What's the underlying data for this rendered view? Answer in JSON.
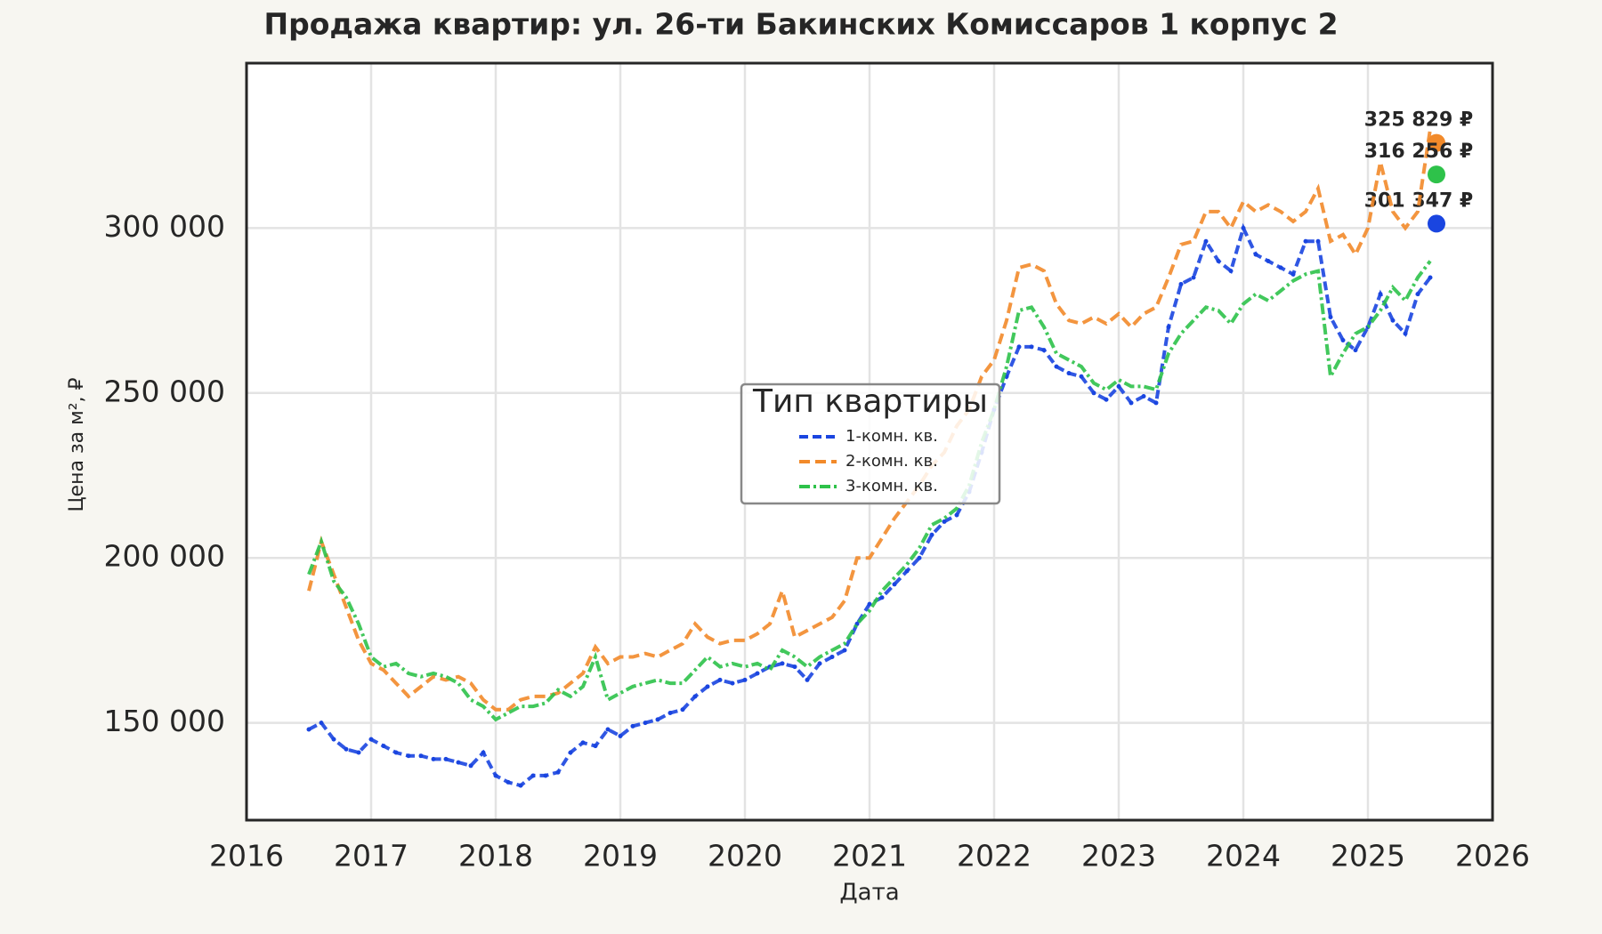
{
  "chart_data": {
    "type": "line",
    "title": "Продажа квартир: ул. 26-ти Бакинских Комиссаров 1 корпус 2",
    "x_label": "Дата",
    "y_label": "Цена за м², ₽",
    "legend_title": "Тип квартиры",
    "legend": "center",
    "grid": true,
    "xlim": [
      2016,
      2026
    ],
    "xticks": [
      2016,
      2017,
      2018,
      2019,
      2020,
      2021,
      2022,
      2023,
      2024,
      2025,
      2026
    ],
    "ylim": [
      120500,
      350000
    ],
    "yticks": [
      {
        "value": 150000,
        "label": "150 000"
      },
      {
        "value": 200000,
        "label": "200 000"
      },
      {
        "value": 250000,
        "label": "250 000"
      },
      {
        "value": 300000,
        "label": "300 000"
      }
    ],
    "x": [
      2016.5,
      2016.6,
      2016.7,
      2016.8,
      2016.9,
      2017.0,
      2017.1,
      2017.2,
      2017.3,
      2017.4,
      2017.5,
      2017.6,
      2017.7,
      2017.8,
      2017.9,
      2018.0,
      2018.1,
      2018.2,
      2018.3,
      2018.4,
      2018.5,
      2018.6,
      2018.7,
      2018.8,
      2018.9,
      2019.0,
      2019.1,
      2019.2,
      2019.3,
      2019.4,
      2019.5,
      2019.6,
      2019.7,
      2019.8,
      2019.9,
      2020.0,
      2020.1,
      2020.2,
      2020.3,
      2020.4,
      2020.5,
      2020.6,
      2020.7,
      2020.8,
      2020.9,
      2021.0,
      2021.1,
      2021.2,
      2021.3,
      2021.4,
      2021.5,
      2021.6,
      2021.7,
      2021.8,
      2021.9,
      2022.0,
      2022.1,
      2022.2,
      2022.3,
      2022.4,
      2022.5,
      2022.6,
      2022.7,
      2022.8,
      2022.9,
      2023.0,
      2023.1,
      2023.2,
      2023.3,
      2023.4,
      2023.5,
      2023.6,
      2023.7,
      2023.8,
      2023.9,
      2024.0,
      2024.1,
      2024.2,
      2024.3,
      2024.4,
      2024.5,
      2024.6,
      2024.7,
      2024.8,
      2024.9,
      2025.0,
      2025.1,
      2025.2,
      2025.3,
      2025.4,
      2025.5
    ],
    "series": [
      {
        "name": "1-комн. кв.",
        "color": "#1a45e0",
        "dash": "10 5",
        "markers": true,
        "values": [
          148000,
          150000,
          145000,
          142000,
          141000,
          145000,
          143000,
          141000,
          140000,
          140000,
          139000,
          139000,
          138000,
          137000,
          141000,
          134000,
          132000,
          131000,
          134000,
          134000,
          135000,
          141000,
          144000,
          143000,
          148000,
          146000,
          149000,
          150000,
          151000,
          153000,
          154000,
          158000,
          161000,
          163000,
          162000,
          163000,
          165000,
          167000,
          168000,
          167000,
          163000,
          168000,
          170000,
          172000,
          180000,
          186000,
          188000,
          192000,
          196000,
          200000,
          207000,
          211000,
          213000,
          220000,
          232000,
          245000,
          255000,
          264000,
          264000,
          263000,
          258000,
          256000,
          255000,
          250000,
          248000,
          252000,
          247000,
          249000,
          247000,
          270000,
          283000,
          285000,
          296000,
          290000,
          287000,
          300000,
          292000,
          290000,
          288000,
          286000,
          296000,
          296000,
          273000,
          266000,
          263000,
          270000,
          280000,
          272000,
          268000,
          280000,
          285000
        ],
        "last_x": 2025.55,
        "last_value": 301347,
        "last_label": "301 347 ₽"
      },
      {
        "name": "2-комн. кв.",
        "color": "#f28a2a",
        "dash": "12 6",
        "markers": false,
        "values": [
          190000,
          205000,
          195000,
          185000,
          175000,
          168000,
          166000,
          162000,
          158000,
          161000,
          164000,
          163000,
          164000,
          162000,
          157000,
          154000,
          154000,
          157000,
          158000,
          158000,
          159000,
          162000,
          165000,
          173000,
          168000,
          170000,
          170000,
          171000,
          170000,
          172000,
          174000,
          180000,
          176000,
          174000,
          175000,
          175000,
          177000,
          180000,
          190000,
          176000,
          178000,
          180000,
          182000,
          187000,
          200000,
          200000,
          206000,
          212000,
          217000,
          222000,
          228000,
          232000,
          240000,
          245000,
          255000,
          260000,
          272000,
          288000,
          289000,
          287000,
          277000,
          272000,
          271000,
          273000,
          271000,
          274000,
          270000,
          274000,
          276000,
          285000,
          295000,
          296000,
          305000,
          305000,
          300000,
          308000,
          305000,
          307000,
          305000,
          302000,
          305000,
          312000,
          296000,
          298000,
          292000,
          300000,
          320000,
          305000,
          300000,
          305000,
          330000
        ],
        "last_x": 2025.55,
        "last_value": 325829,
        "last_label": "325 829 ₽"
      },
      {
        "name": "3-комн. кв.",
        "color": "#2ec24a",
        "dash": "12 4 3 4",
        "markers": false,
        "values": [
          195000,
          205000,
          193000,
          188000,
          180000,
          170000,
          167000,
          168000,
          165000,
          164000,
          165000,
          164000,
          162000,
          157000,
          155000,
          151000,
          153000,
          155000,
          155000,
          156000,
          160000,
          158000,
          161000,
          170000,
          157000,
          159000,
          161000,
          162000,
          163000,
          162000,
          162000,
          166000,
          170000,
          167000,
          168000,
          167000,
          168000,
          166000,
          172000,
          170000,
          167000,
          170000,
          172000,
          174000,
          180000,
          184000,
          190000,
          194000,
          198000,
          203000,
          210000,
          212000,
          215000,
          222000,
          235000,
          245000,
          258000,
          275000,
          276000,
          270000,
          262000,
          260000,
          258000,
          253000,
          251000,
          254000,
          252000,
          252000,
          251000,
          262000,
          268000,
          272000,
          276000,
          275000,
          271000,
          277000,
          280000,
          278000,
          281000,
          284000,
          286000,
          287000,
          255000,
          262000,
          268000,
          270000,
          275000,
          282000,
          278000,
          285000,
          290000
        ],
        "last_x": 2025.55,
        "last_value": 316256,
        "last_label": "316 256 ₽"
      }
    ]
  }
}
